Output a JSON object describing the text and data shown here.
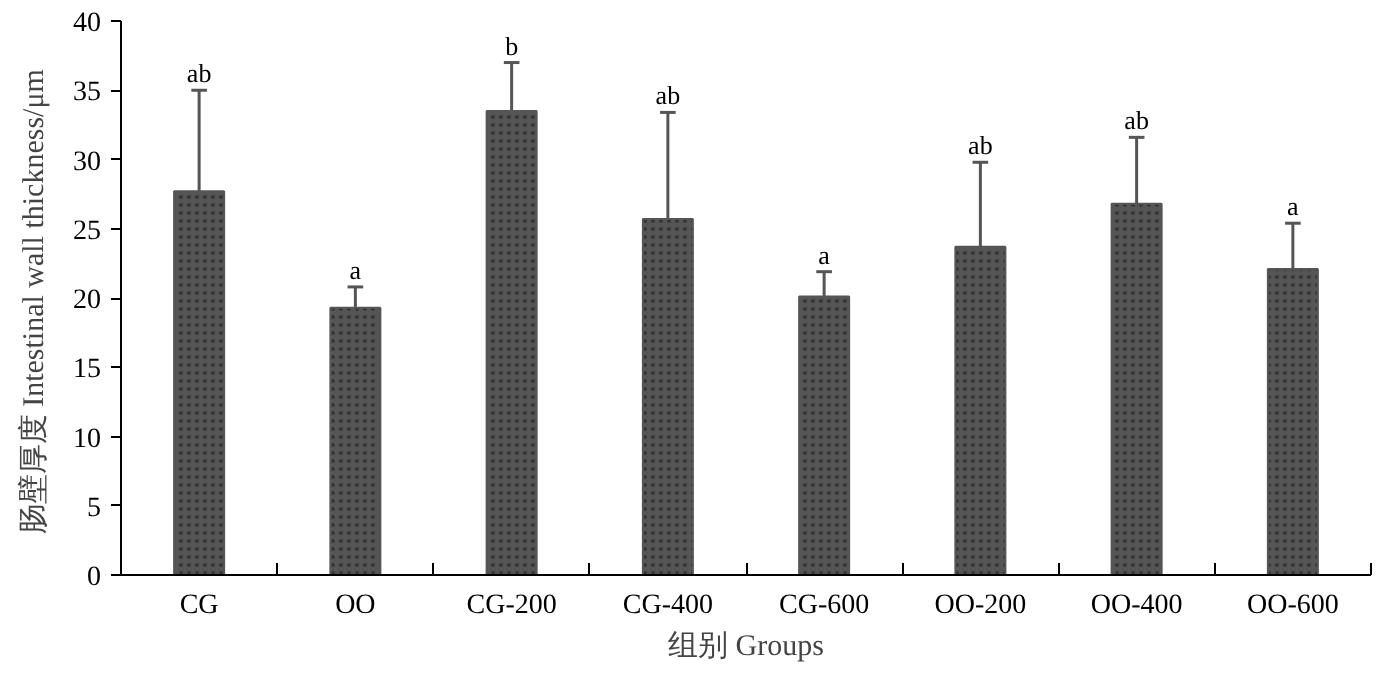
{
  "chart_data": {
    "type": "bar",
    "xlabel": "组别 Groups",
    "ylabel": "肠壁厚度  Intestinal wall thickness/μm",
    "categories": [
      "CG",
      "OO",
      "CG-200",
      "CG-400",
      "CG-600",
      "OO-200",
      "OO-400",
      "OO-600"
    ],
    "values": [
      27.7,
      19.3,
      33.5,
      25.7,
      20.1,
      23.7,
      26.8,
      22.1
    ],
    "errors": [
      [
        27.7,
        35.0
      ],
      [
        19.3,
        20.8
      ],
      [
        33.5,
        37.0
      ],
      [
        25.7,
        33.4
      ],
      [
        20.1,
        21.9
      ],
      [
        23.7,
        29.8
      ],
      [
        26.8,
        31.6
      ],
      [
        22.1,
        25.4
      ]
    ],
    "color": "#555555",
    "ylim": [
      0,
      40
    ],
    "yticks": [
      0,
      5,
      10,
      15,
      20,
      25,
      30,
      35,
      40
    ],
    "annotations": [
      {
        "text": "ab",
        "x": "CG",
        "y": 35.0
      },
      {
        "text": "a",
        "x": "OO",
        "y": 20.8
      },
      {
        "text": "b",
        "x": "CG-200",
        "y": 37.0
      },
      {
        "text": "ab",
        "x": "CG-400",
        "y": 33.4
      },
      {
        "text": "a",
        "x": "CG-600",
        "y": 21.9
      },
      {
        "text": "ab",
        "x": "OO-200",
        "y": 29.8
      },
      {
        "text": "ab",
        "x": "OO-400",
        "y": 31.6
      },
      {
        "text": "a",
        "x": "OO-600",
        "y": 25.4
      }
    ],
    "grid": false
  }
}
